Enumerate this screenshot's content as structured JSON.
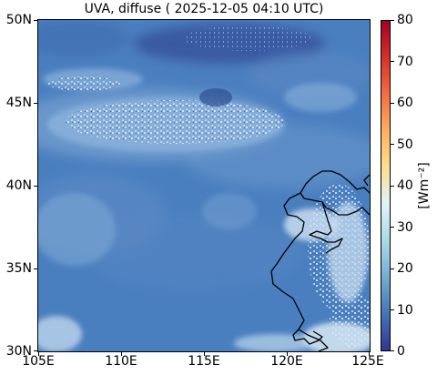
{
  "title": "UVA, diffuse ( 2025-12-05 04:10 UTC)",
  "map": {
    "lat_ticks": [
      "50N",
      "45N",
      "40N",
      "35N",
      "30N"
    ],
    "lon_ticks": [
      "105E",
      "110E",
      "115E",
      "120E",
      "125E"
    ],
    "lat_range": [
      30,
      50
    ],
    "lon_range": [
      105,
      125
    ]
  },
  "colorbar": {
    "ticks": [
      "80",
      "70",
      "60",
      "50",
      "40",
      "30",
      "20",
      "10",
      "0"
    ],
    "range": [
      0,
      80
    ],
    "label": "[Wm⁻²]",
    "colors": [
      "#313695",
      "#4575b4",
      "#74add1",
      "#abd9e9",
      "#e0f3f8",
      "#fee090",
      "#fdae61",
      "#f46d43",
      "#d73027",
      "#a50026"
    ]
  },
  "colors": {
    "field_base": "#4a7fbf",
    "field_light": "#8fb6dc",
    "field_dark": "#3a62a8",
    "coastline": "#000000"
  }
}
